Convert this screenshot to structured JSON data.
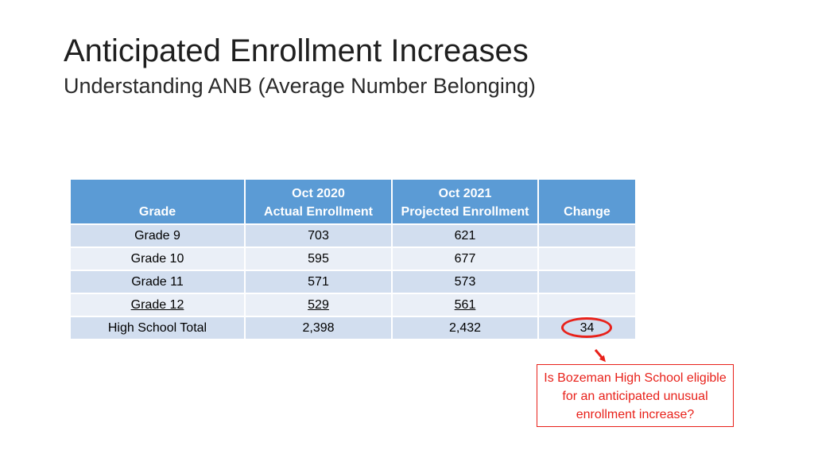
{
  "slide": {
    "title": "Anticipated Enrollment Increases",
    "subtitle": "Understanding ANB (Average Number Belonging)"
  },
  "table": {
    "headers": [
      {
        "line1": "",
        "line2": "Grade"
      },
      {
        "line1": "Oct 2020",
        "line2": "Actual Enrollment"
      },
      {
        "line1": "Oct 2021",
        "line2": "Projected Enrollment"
      },
      {
        "line1": "",
        "line2": "Change"
      }
    ],
    "rows": [
      {
        "grade": "Grade 9",
        "actual": "703",
        "projected": "621",
        "change": ""
      },
      {
        "grade": "Grade 10",
        "actual": "595",
        "projected": "677",
        "change": ""
      },
      {
        "grade": "Grade 11",
        "actual": "571",
        "projected": "573",
        "change": ""
      },
      {
        "grade": "Grade 12",
        "actual": "529",
        "projected": "561",
        "change": ""
      },
      {
        "grade": "High School Total",
        "actual": "2,398",
        "projected": "2,432",
        "change": "34"
      }
    ]
  },
  "callout": {
    "text": "Is Bozeman High School eligible for an anticipated unusual enrollment increase?"
  },
  "colors": {
    "header_bg": "#5b9bd5",
    "row_odd": "#d2deef",
    "row_even": "#eaeff7",
    "highlight": "#e8211a"
  }
}
